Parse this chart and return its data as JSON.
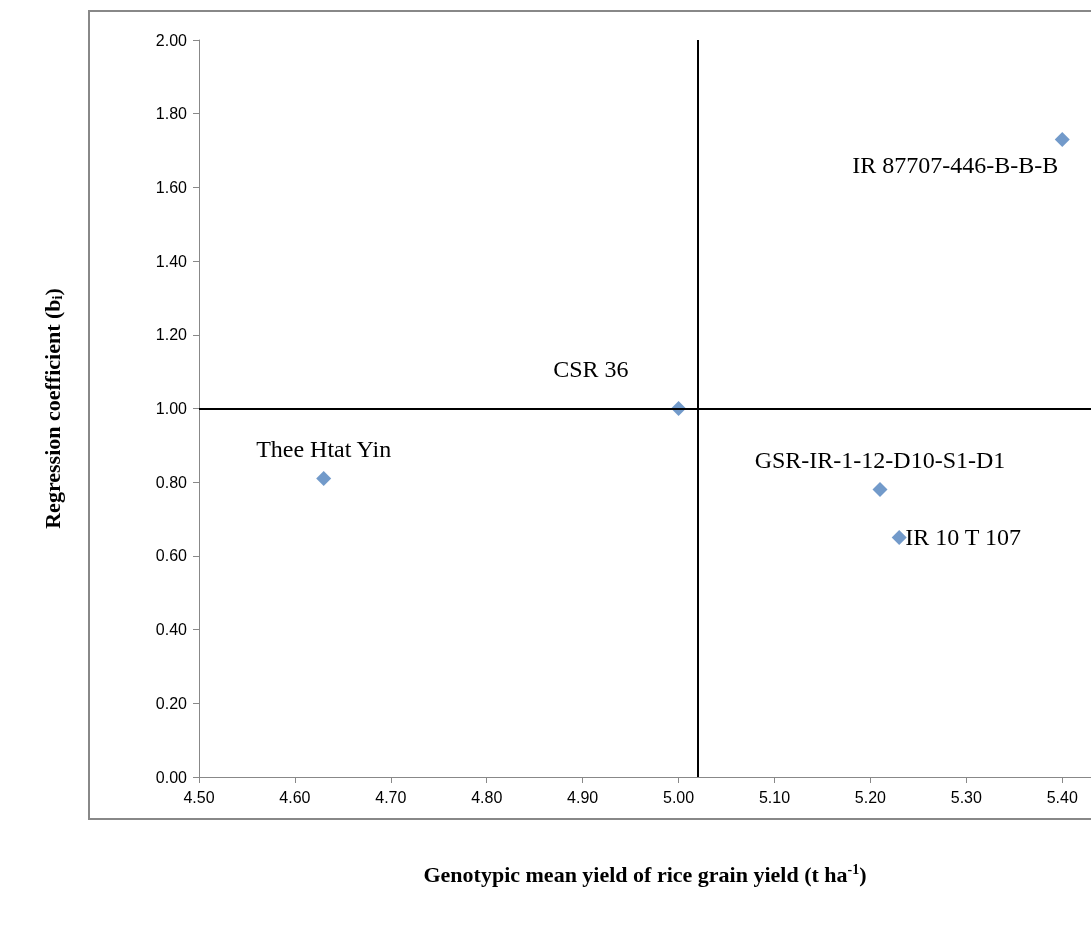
{
  "chart_data": {
    "type": "scatter",
    "xlabel": "Genotypic mean yield of rice grain yield (t ha$^{-1}$)",
    "ylabel": "Regression coefficient (b$_{i}$)",
    "x": [
      4.63,
      5.0,
      5.21,
      5.23,
      5.4
    ],
    "values": [
      0.81,
      1.0,
      0.78,
      0.65,
      1.73
    ],
    "color": "#4f81bd",
    "marker": "diamond",
    "xlim": [
      4.5,
      5.43
    ],
    "xticks": [
      {
        "value": 4.5,
        "label": "4.50"
      },
      {
        "value": 4.6,
        "label": "4.60"
      },
      {
        "value": 4.7,
        "label": "4.70"
      },
      {
        "value": 4.8,
        "label": "4.80"
      },
      {
        "value": 4.9,
        "label": "4.90"
      },
      {
        "value": 5.0,
        "label": "5.00"
      },
      {
        "value": 5.1,
        "label": "5.10"
      },
      {
        "value": 5.2,
        "label": "5.20"
      },
      {
        "value": 5.3,
        "label": "5.30"
      },
      {
        "value": 5.4,
        "label": "5.40"
      }
    ],
    "ylim": [
      0,
      2
    ],
    "yticks": [
      {
        "value": 0,
        "label": "0.00"
      },
      {
        "value": 0.2,
        "label": "0.20"
      },
      {
        "value": 0.4,
        "label": "0.40"
      },
      {
        "value": 0.6,
        "label": "0.60"
      },
      {
        "value": 0.8,
        "label": "0.80"
      },
      {
        "value": 1.0,
        "label": "1.00"
      },
      {
        "value": 1.2,
        "label": "1.20"
      },
      {
        "value": 1.4,
        "label": "1.40"
      },
      {
        "value": 1.6,
        "label": "1.60"
      },
      {
        "value": 1.8,
        "label": "1.80"
      },
      {
        "value": 2.0,
        "label": "2.00"
      }
    ],
    "grid": false,
    "ref_lines": [
      {
        "axis": "x",
        "value": 5.02,
        "color": "#000000"
      },
      {
        "axis": "y",
        "value": 1.0,
        "color": "#000000"
      }
    ],
    "annotations": [
      {
        "text": "Thee Htat Yin",
        "x": 4.63,
        "y": 0.81
      },
      {
        "text": "CSR 36",
        "x": 5.0,
        "y": 1.0
      },
      {
        "text": "GSR-IR-1-12-D10-S1-D1",
        "x": 5.21,
        "y": 0.78
      },
      {
        "text": "IR 10 T 107",
        "x": 5.23,
        "y": 0.65
      },
      {
        "text": "IR 87707-446-B-B-B",
        "x": 5.4,
        "y": 1.73
      }
    ]
  }
}
